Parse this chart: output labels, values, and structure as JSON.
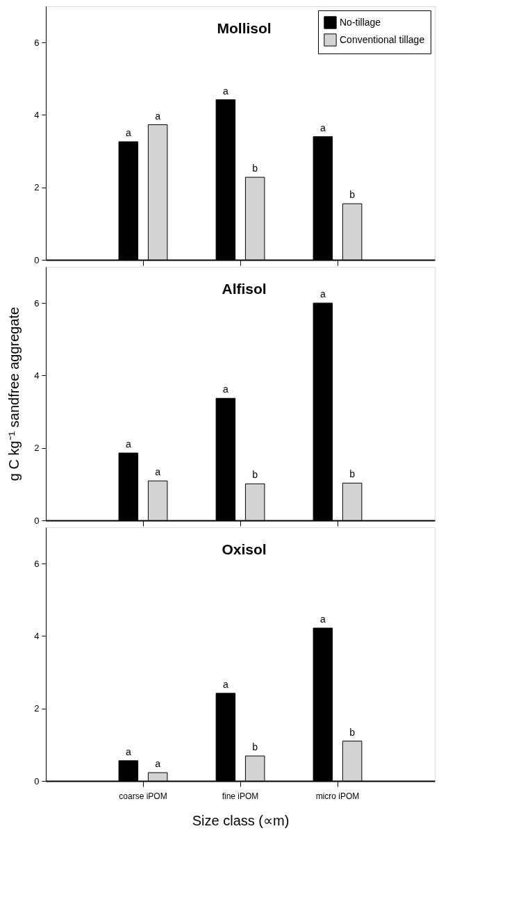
{
  "chart_data": [
    {
      "type": "bar",
      "title": "Mollisol",
      "categories": [
        null,
        null,
        null
      ],
      "series": [
        {
          "name": "No-tillage",
          "color": "#000000",
          "values": [
            3.26,
            4.42,
            3.4
          ],
          "value_labels": [
            "a",
            "a",
            "a"
          ]
        },
        {
          "name": "Conventional tillage",
          "color": "#d3d3d3",
          "values": [
            3.73,
            2.28,
            1.55
          ],
          "value_labels": [
            "a",
            "b",
            "b"
          ]
        }
      ],
      "ylim": [
        0,
        7
      ],
      "yticks": [
        0,
        2,
        4,
        6
      ],
      "legend": "top right",
      "tick_labels": "y"
    },
    {
      "type": "bar",
      "title": "Alfisol",
      "categories": [
        null,
        null,
        null
      ],
      "series": [
        {
          "color": "#000000",
          "values": [
            1.86,
            3.37,
            6.0
          ],
          "value_labels": [
            "a",
            "a",
            "a"
          ]
        },
        {
          "color": "#d3d3d3",
          "values": [
            1.09,
            1.01,
            1.03
          ],
          "value_labels": [
            "a",
            "b",
            "b"
          ]
        }
      ],
      "ylim": [
        0,
        7
      ],
      "yticks": [
        0,
        2,
        4,
        6
      ],
      "ylabel": "g C kg⁻¹ sandfree aggregate",
      "tick_labels": "y"
    },
    {
      "type": "bar",
      "title": "Oxisol",
      "categories": [
        "coarse iPOM",
        "fine iPOM",
        "micro iPOM"
      ],
      "series": [
        {
          "color": "#000000",
          "values": [
            0.56,
            2.42,
            4.22
          ],
          "value_labels": [
            "a",
            "a",
            "a"
          ]
        },
        {
          "color": "#d3d3d3",
          "values": [
            0.23,
            0.69,
            1.1
          ],
          "value_labels": [
            "a",
            "b",
            "b"
          ]
        }
      ],
      "ylim": [
        0,
        7
      ],
      "yticks": [
        0,
        2,
        4,
        6
      ],
      "xlabel": "Size class (∝m)"
    }
  ]
}
